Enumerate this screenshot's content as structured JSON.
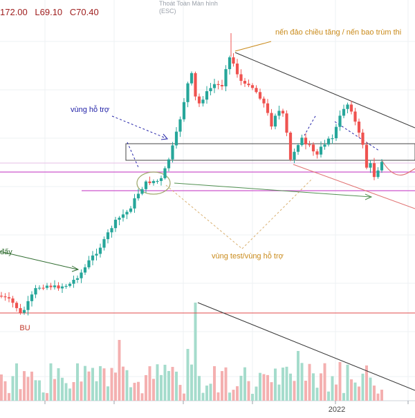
{
  "header": {
    "ohlc": [
      "172.00",
      "L69.10",
      "C70.40"
    ],
    "fullscreen_exit": [
      "Thoát Toàn Màn hình",
      "(ESC)"
    ]
  },
  "colors": {
    "up": "#26a69a",
    "down": "#ef5350",
    "up_volume": "#a5dccc",
    "down_volume": "#f4b0b0",
    "annotation_orange": "#c98a1a",
    "annotation_blue": "#2323a8",
    "annotation_green": "#2e6b2e",
    "support_line": "#e04a4a",
    "magenta_line": "#cc55cc",
    "trend_line": "#333333",
    "grid": "#eef0f3"
  },
  "annotations": {
    "peak_note": "nến đảo chiều tăng / nến bao trùm thi",
    "support_zone": "vùng hỗ trợ",
    "test_zone": "vùng test/vùng hỗ trợ",
    "bottom_note": "đấy",
    "bu_label": "BU"
  },
  "chart_data": {
    "type": "candlestick",
    "x_ticks": [
      "2022"
    ],
    "ohlc_shown": {
      "close": 70.4,
      "low": 69.1
    },
    "title": "",
    "xlabel": "",
    "ylabel": "",
    "legend": "none",
    "grid": true
  }
}
